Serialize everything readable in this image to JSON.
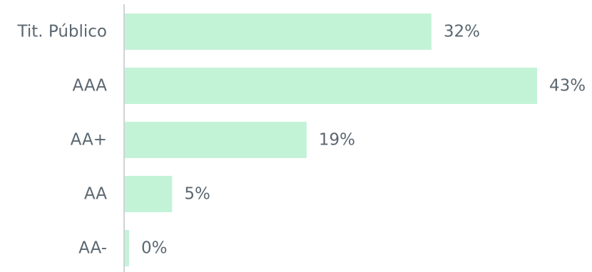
{
  "chart_data": {
    "type": "bar",
    "orientation": "horizontal",
    "categories": [
      "Tit. Público",
      "AAA",
      "AA+",
      "AA",
      "AA-"
    ],
    "values": [
      32,
      43,
      19,
      5,
      0
    ],
    "value_labels": [
      "32%",
      "43%",
      "19%",
      "5%",
      "0%"
    ],
    "unit": "%",
    "title": "",
    "xlabel": "",
    "ylabel": "",
    "xlim": [
      0,
      43
    ],
    "grid": false,
    "legend": "none",
    "colors": {
      "bar": "#c3f3d6",
      "axis": "#cfd3d6",
      "text": "#5b6770"
    }
  }
}
